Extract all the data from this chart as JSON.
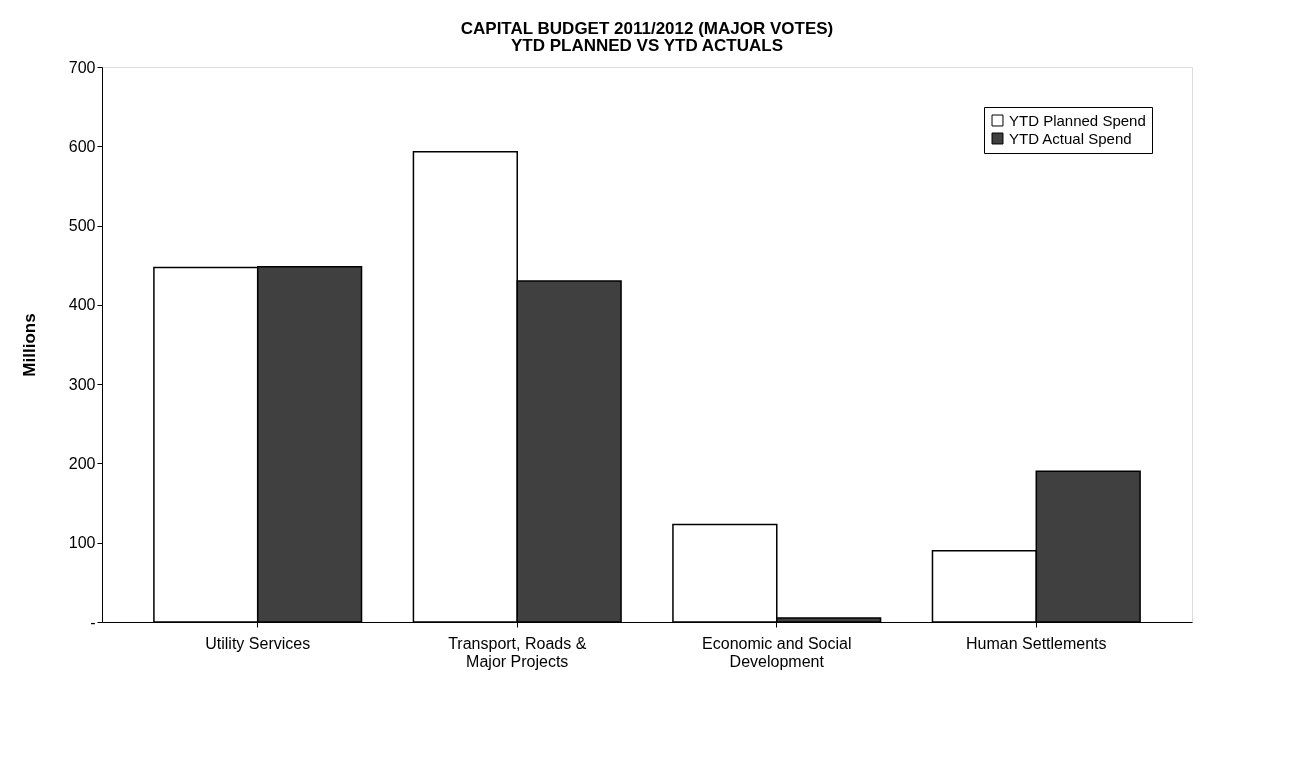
{
  "chart_data": {
    "type": "bar",
    "title": "CAPITAL BUDGET 2011/2012 (MAJOR VOTES)",
    "subtitle": "YTD PLANNED VS YTD ACTUALS",
    "ylabel": "Millions",
    "categories": [
      "Utility Services",
      "Transport, Roads & Major Projects",
      "Economic and Social Development",
      "Human Settlements"
    ],
    "series": [
      {
        "name": "YTD Planned Spend",
        "color": "#ffffff",
        "values": [
          447,
          593,
          123,
          90
        ]
      },
      {
        "name": "YTD Actual Spend",
        "color": "#404040",
        "values": [
          448,
          430,
          5,
          190
        ]
      }
    ],
    "ylim": [
      0,
      700
    ],
    "yticks": [
      {
        "value": 0,
        "label": "-"
      },
      100,
      200,
      300,
      400,
      500,
      600,
      700
    ],
    "grid": false,
    "legend": "top right"
  }
}
